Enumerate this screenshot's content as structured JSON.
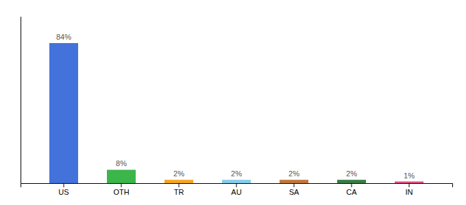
{
  "chart_data": {
    "type": "bar",
    "categories": [
      "US",
      "OTH",
      "TR",
      "AU",
      "SA",
      "CA",
      "IN"
    ],
    "values": [
      84,
      8,
      2,
      2,
      2,
      2,
      1
    ],
    "value_labels": [
      "84%",
      "8%",
      "2%",
      "2%",
      "2%",
      "2%",
      "1%"
    ],
    "colors": [
      "#4472db",
      "#3cb54a",
      "#f5a623",
      "#87ceeb",
      "#c07840",
      "#3a7d44",
      "#e05080"
    ],
    "ylim": [
      0,
      100
    ],
    "data_labels": true,
    "tick_labels": "x"
  }
}
